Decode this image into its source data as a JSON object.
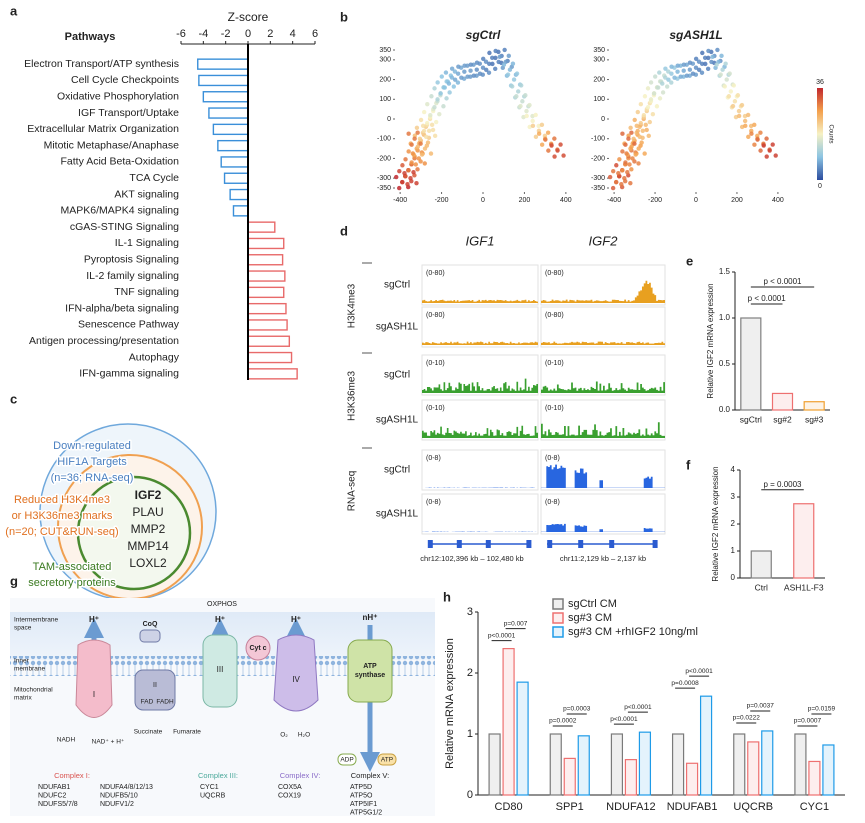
{
  "panel_labels": [
    "a",
    "b",
    "c",
    "d",
    "e",
    "f",
    "g",
    "h"
  ],
  "chart_data": [
    {
      "type": "hbar",
      "title": "Z-score",
      "header": "Pathways",
      "categories": [
        "Electron Transport/ATP synthesis",
        "Cell Cycle Checkpoints",
        "Oxidative Phosphorylation",
        "IGF Transport/Uptake",
        "Extracellular Matrix Organization",
        "Mitotic Metaphase/Anaphase",
        "Fatty Acid Beta-Oxidation",
        "TCA Cycle",
        "AKT signaling",
        "MAPK6/MAPK4 signaling",
        "cGAS-STING Signaling",
        "IL-1 Signaling",
        "Pyroptosis Signaling",
        "IL-2 family signaling",
        "TNF signaling",
        "IFN-alpha/beta signaling",
        "Senescence Pathway",
        "Antigen processing/presentation",
        "Autophagy",
        "IFN-gamma signaling"
      ],
      "values": [
        -4.5,
        -4.4,
        -4.0,
        -3.5,
        -3.1,
        -2.7,
        -2.4,
        -2.1,
        -1.6,
        -1.3,
        2.4,
        3.2,
        3.1,
        3.3,
        3.2,
        3.4,
        3.5,
        3.7,
        3.9,
        4.4
      ],
      "negative_color": "#3a8fd9",
      "positive_color": "#e86a6a",
      "xlim": [
        -6,
        6
      ],
      "xticks": [
        -6,
        -4,
        -2,
        0,
        2,
        4,
        6
      ]
    },
    {
      "type": "scatter",
      "title": "sgCtrl",
      "x": [
        -390,
        -375,
        -360,
        -345,
        -330,
        -320,
        -300,
        -290,
        -270,
        -255,
        -240,
        -220,
        -205,
        -190,
        -170,
        -150,
        -120,
        -90,
        -60,
        -30,
        0,
        30,
        60,
        90,
        110,
        130,
        150,
        170,
        190,
        210,
        240,
        270,
        300,
        330,
        360,
        -350,
        -310,
        -280,
        -330,
        -260
      ],
      "y": [
        -320,
        -290,
        -260,
        -230,
        -190,
        -150,
        -110,
        -70,
        -30,
        10,
        50,
        90,
        130,
        160,
        190,
        210,
        230,
        240,
        245,
        250,
        260,
        280,
        310,
        320,
        290,
        250,
        200,
        140,
        90,
        40,
        -10,
        -60,
        -100,
        -130,
        -160,
        -300,
        -200,
        -150,
        -100,
        -60
      ],
      "values": [
        36,
        34,
        32,
        30,
        28,
        26,
        24,
        22,
        20,
        18,
        16,
        14,
        12,
        10,
        9,
        8,
        7,
        6,
        6,
        5,
        5,
        4,
        3,
        4,
        6,
        8,
        10,
        12,
        14,
        16,
        18,
        22,
        26,
        30,
        33,
        34,
        28,
        24,
        30,
        20
      ],
      "xlim": [
        -420,
        420
      ],
      "xticks": [
        -400,
        -200,
        0,
        200,
        400
      ],
      "ylim": [
        -350,
        350
      ],
      "yticks": [
        -350,
        -300,
        -200,
        -100,
        0,
        100,
        200,
        300,
        350
      ],
      "colormap": [
        "#2b4c9e",
        "#8cc4e2",
        "#f6f1c4",
        "#f4a04c",
        "#c1272d"
      ]
    },
    {
      "type": "scatter",
      "title": "sgASH1L",
      "x": [
        -390,
        -375,
        -360,
        -345,
        -330,
        -320,
        -300,
        -290,
        -270,
        -255,
        -240,
        -220,
        -205,
        -190,
        -170,
        -150,
        -120,
        -90,
        -60,
        -30,
        0,
        30,
        60,
        90,
        110,
        130,
        150,
        170,
        190,
        210,
        240,
        270,
        300,
        330,
        360,
        -350,
        -310,
        -280,
        -330,
        -260
      ],
      "y": [
        -320,
        -290,
        -260,
        -230,
        -190,
        -150,
        -110,
        -70,
        -30,
        10,
        50,
        90,
        130,
        160,
        190,
        210,
        230,
        240,
        245,
        250,
        260,
        280,
        310,
        320,
        290,
        250,
        200,
        140,
        90,
        40,
        -10,
        -60,
        -100,
        -130,
        -160,
        -300,
        -200,
        -150,
        -100,
        -60
      ],
      "values": [
        32,
        30,
        33,
        28,
        30,
        26,
        27,
        24,
        25,
        22,
        20,
        18,
        17,
        15,
        14,
        12,
        10,
        8,
        7,
        6,
        5,
        4,
        3,
        5,
        8,
        12,
        15,
        18,
        20,
        22,
        24,
        26,
        29,
        31,
        34,
        30,
        29,
        26,
        31,
        24
      ],
      "xlim": [
        -420,
        420
      ],
      "xticks": [
        -400,
        -200,
        0,
        200,
        400
      ],
      "ylim": [
        -350,
        350
      ],
      "yticks": [
        -350,
        -300,
        -200,
        -100,
        0,
        100,
        200,
        300,
        350
      ],
      "colormap": [
        "#2b4c9e",
        "#8cc4e2",
        "#f6f1c4",
        "#f4a04c",
        "#c1272d"
      ],
      "colorbar": {
        "min": 0,
        "max": 36,
        "label": "Counts"
      }
    },
    {
      "type": "bar",
      "ylabel": "Relative IGF2 mRNA expression",
      "categories": [
        "sgCtrl",
        "sg#2",
        "sg#3"
      ],
      "values": [
        1.0,
        0.18,
        0.09
      ],
      "colors": [
        "#7f7f7f",
        "#ee7070",
        "#f0a030"
      ],
      "ylim": [
        0,
        1.5
      ],
      "yticks": [
        {
          "value": 0,
          "label": "0.0"
        },
        0.5,
        {
          "value": 1,
          "label": "1.0"
        },
        1.5
      ],
      "annotations": [
        "p < 0.0001",
        "p < 0.0001"
      ]
    },
    {
      "type": "bar",
      "ylabel": "Relative IGF2 mRNA expression",
      "categories": [
        "Ctrl",
        "ASH1L-F3"
      ],
      "values": [
        1.0,
        2.75
      ],
      "colors": [
        "#7f7f7f",
        "#ee7070"
      ],
      "ylim": [
        0,
        4
      ],
      "yticks": [
        0,
        1,
        2,
        3,
        4
      ],
      "annotations": [
        "p = 0.0003"
      ]
    },
    {
      "type": "grouped_bar",
      "ylabel": "Relative mRNA expression",
      "categories": [
        "CD80",
        "SPP1",
        "NDUFA12",
        "NDUFAB1",
        "UQCRB",
        "CYC1"
      ],
      "series": [
        {
          "name": "sgCtrl CM",
          "color": "#7a7a7a",
          "values": [
            1.0,
            1.0,
            1.0,
            1.0,
            1.0,
            1.0
          ]
        },
        {
          "name": "sg#3 CM",
          "color": "#ee7070",
          "values": [
            2.4,
            0.6,
            0.58,
            0.52,
            0.87,
            0.55
          ]
        },
        {
          "name": "sg#3 CM +rhIGF2 10ng/ml",
          "color": "#1e9be8",
          "values": [
            1.85,
            0.97,
            1.03,
            1.62,
            1.05,
            0.82
          ]
        }
      ],
      "pvalues": [
        [
          "p<0.0001",
          "p=0.007"
        ],
        [
          "p=0.0002",
          "p=0.0003"
        ],
        [
          "p<0.0001",
          "p<0.0001"
        ],
        [
          "p=0.0008",
          "p<0.0001"
        ],
        [
          "p=0.0222",
          "p=0.0037"
        ],
        [
          "p=0.0007",
          "p=0.0159"
        ]
      ],
      "ylim": [
        0,
        3
      ],
      "yticks": [
        0,
        1,
        2,
        3
      ]
    }
  ],
  "venn": {
    "outer": [
      "Down-regulated",
      "HIF1A Targets",
      "(n=36; RNA-seq)"
    ],
    "middle": [
      "Reduced H3K4me3",
      "or H3K36me3 marks",
      "(n=20; CUT&RUN-seq)"
    ],
    "inner": [
      "TAM-associated",
      "secretory proteins"
    ],
    "genes": [
      "IGF2",
      "PLAU",
      "MMP2",
      "MMP14",
      "LOXL2"
    ]
  },
  "tracks": {
    "genes": [
      "IGF1",
      "IGF2"
    ],
    "marks": [
      "H3K4me3",
      "H3K36me3",
      "RNA-seq"
    ],
    "samples": [
      "sgCtrl",
      "sgASH1L"
    ],
    "ranges": [
      "(0-80)",
      "(0-10)",
      "(0-8)"
    ],
    "coordinates": [
      "chr12:102,396 kb – 102,480 kb",
      "chr11:2,129 kb – 2,137 kb"
    ]
  },
  "oxphos": {
    "title": "OXPHOS",
    "regions": [
      [
        "Intermembrane",
        "space"
      ],
      [
        "Inner",
        "membrane"
      ],
      [
        "Mitochondrial",
        "matrix"
      ]
    ],
    "complexes": [
      "I",
      "II",
      "III",
      "IV"
    ],
    "coq": "CoQ",
    "cytc": "Cyt c",
    "atp_synthase": [
      "ATP",
      "synthase"
    ],
    "protons": [
      "H⁺",
      "H⁺",
      "H⁺",
      "nH⁺"
    ],
    "metabolites": [
      "NADH",
      "NAD⁺ + H⁺",
      "Succinate",
      "Fumarate",
      "FAD",
      "FADH",
      "O₂",
      "H₂O",
      "ADP",
      "ATP"
    ],
    "gene_lists": [
      {
        "title": "Complex I:",
        "genes": [
          "NDUFAB1",
          "NDUFC2",
          "NDUFS5/7/8",
          "NDUFA4/8/12/13",
          "NDUFB5/10",
          "NDUFV1/2"
        ]
      },
      {
        "title": "Complex III:",
        "genes": [
          "CYC1",
          "UQCRB"
        ]
      },
      {
        "title": "Complex IV:",
        "genes": [
          "COX5A",
          "COX19"
        ]
      },
      {
        "title": "Complex V:",
        "genes": [
          "ATP5D",
          "ATP5O",
          "ATP5IF1",
          "ATP5G1/2"
        ]
      }
    ]
  }
}
